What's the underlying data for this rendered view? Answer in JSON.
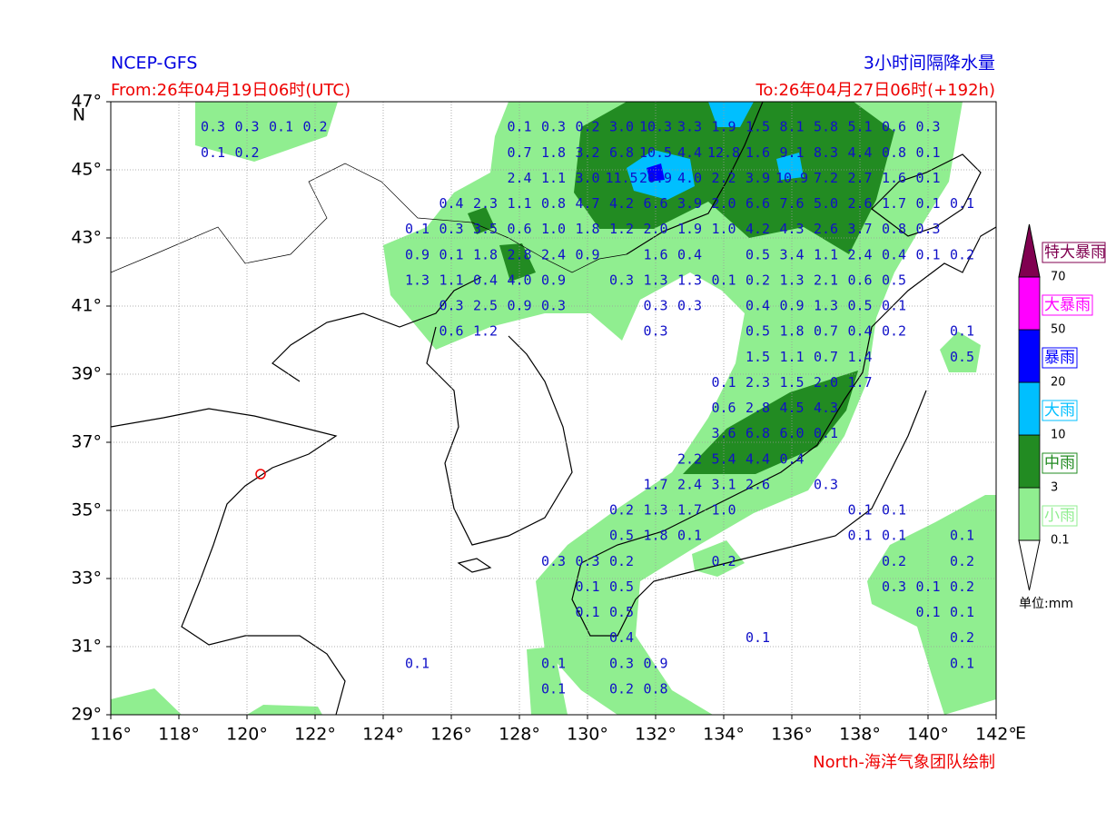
{
  "header": {
    "model": "NCEP-GFS",
    "product": "3小时间隔降水量",
    "from": "From:26年04月19日06时(UTC)",
    "to": "To:26年04月27日06时(+192h)",
    "credit": "North-海洋气象团队绘制",
    "lat_unit": "N",
    "lon_unit": "E"
  },
  "map": {
    "lonlim": [
      116,
      142
    ],
    "latlim": [
      29,
      47
    ],
    "xticks": [
      {
        "value": 116,
        "label": "116°"
      },
      {
        "value": 118,
        "label": "118°"
      },
      {
        "value": 120,
        "label": "120°"
      },
      {
        "value": 122,
        "label": "122°"
      },
      {
        "value": 124,
        "label": "124°"
      },
      {
        "value": 126,
        "label": "126°"
      },
      {
        "value": 128,
        "label": "128°"
      },
      {
        "value": 130,
        "label": "130°"
      },
      {
        "value": 132,
        "label": "132°"
      },
      {
        "value": 134,
        "label": "134°"
      },
      {
        "value": 136,
        "label": "136°"
      },
      {
        "value": 138,
        "label": "138°"
      },
      {
        "value": 140,
        "label": "140°"
      },
      {
        "value": 142,
        "label": "142°"
      }
    ],
    "yticks": [
      {
        "value": 29,
        "label": "29°"
      },
      {
        "value": 31,
        "label": "31°"
      },
      {
        "value": 33,
        "label": "33°"
      },
      {
        "value": 35,
        "label": "35°"
      },
      {
        "value": 37,
        "label": "37°"
      },
      {
        "value": 39,
        "label": "39°"
      },
      {
        "value": 41,
        "label": "41°"
      },
      {
        "value": 43,
        "label": "43°"
      },
      {
        "value": 45,
        "label": "45°"
      },
      {
        "value": 47,
        "label": "47°"
      }
    ],
    "grid": true,
    "rows": [
      {
        "lat": 46.25,
        "lon": 119,
        "values": [
          "0.3",
          "0.3",
          "0.1",
          "0.2",
          null,
          null,
          null,
          null,
          null,
          "0.1",
          "0.3",
          "0.2",
          "3.0",
          "10.3",
          "3.3",
          "1.9",
          "1.5",
          "8.1",
          "5.8",
          "5.1",
          "0.6",
          "0.3"
        ]
      },
      {
        "lat": 45.5,
        "lon": 119,
        "values": [
          "0.1",
          "0.2",
          null,
          null,
          null,
          null,
          null,
          null,
          null,
          "0.7",
          "1.8",
          "3.2",
          "6.8",
          "10.5",
          "4.4",
          "12.8",
          "1.6",
          "9.1",
          "8.3",
          "4.4",
          "0.8",
          "0.1"
        ]
      },
      {
        "lat": 44.75,
        "lon": 128,
        "values": [
          "2.4",
          "1.1",
          "3.0",
          "11.5",
          "20.9",
          "4.0",
          "2.2",
          "3.9",
          "10.9",
          "7.2",
          "2.7",
          "1.6",
          "0.1"
        ]
      },
      {
        "lat": 44.0,
        "lon": 126,
        "values": [
          "0.4",
          "2.3",
          "1.1",
          "0.8",
          "4.7",
          "4.2",
          "6.6",
          "3.9",
          "2.0",
          "6.6",
          "7.6",
          "5.0",
          "2.6",
          "1.7",
          "0.1",
          "0.1"
        ]
      },
      {
        "lat": 43.25,
        "lon": 125,
        "values": [
          "0.1",
          "0.3",
          "3.5",
          "0.6",
          "1.0",
          "1.8",
          "1.2",
          "2.0",
          "1.9",
          "1.0",
          "4.2",
          "4.3",
          "2.6",
          "3.7",
          "0.8",
          "0.3"
        ]
      },
      {
        "lat": 42.5,
        "lon": 125,
        "values": [
          "0.9",
          "0.1",
          "1.8",
          "2.8",
          "2.4",
          "0.9",
          null,
          "1.6",
          "0.4",
          null,
          "0.5",
          "3.4",
          "1.1",
          "2.4",
          "0.4",
          "0.1",
          "0.2"
        ]
      },
      {
        "lat": 41.75,
        "lon": 125,
        "values": [
          "1.3",
          "1.1",
          "0.4",
          "4.0",
          "0.9",
          null,
          "0.3",
          "1.3",
          "1.3",
          "0.1",
          "0.2",
          "1.3",
          "2.1",
          "0.6",
          "0.5"
        ]
      },
      {
        "lat": 41.0,
        "lon": 126,
        "values": [
          "0.3",
          "2.5",
          "0.9",
          "0.3",
          null,
          null,
          "0.3",
          "0.3",
          null,
          "0.4",
          "0.9",
          "1.3",
          "0.5",
          "0.1"
        ]
      },
      {
        "lat": 40.25,
        "lon": 126,
        "values": [
          "0.6",
          "1.2",
          null,
          null,
          null,
          null,
          "0.3",
          null,
          null,
          "0.5",
          "1.8",
          "0.7",
          "0.4",
          "0.2",
          null,
          "0.1"
        ]
      },
      {
        "lat": 39.5,
        "lon": 135,
        "values": [
          "1.5",
          "1.1",
          "0.7",
          "1.4",
          null,
          null,
          "0.5"
        ]
      },
      {
        "lat": 38.75,
        "lon": 134,
        "values": [
          "0.1",
          "2.3",
          "1.5",
          "2.0",
          "1.7"
        ]
      },
      {
        "lat": 38.0,
        "lon": 134,
        "values": [
          "0.6",
          "2.8",
          "4.5",
          "4.3"
        ]
      },
      {
        "lat": 37.25,
        "lon": 134,
        "values": [
          "3.6",
          "6.8",
          "6.0",
          "0.1"
        ]
      },
      {
        "lat": 36.5,
        "lon": 133,
        "values": [
          "2.2",
          "5.4",
          "4.4",
          "0.4"
        ]
      },
      {
        "lat": 35.75,
        "lon": 132,
        "values": [
          "1.7",
          "2.4",
          "3.1",
          "2.6",
          null,
          "0.3"
        ]
      },
      {
        "lat": 35.0,
        "lon": 131,
        "values": [
          "0.2",
          "1.3",
          "1.7",
          "1.0",
          null,
          null,
          null,
          "0.1",
          "0.1"
        ]
      },
      {
        "lat": 34.25,
        "lon": 131,
        "values": [
          "0.5",
          "1.8",
          "0.1",
          null,
          null,
          null,
          null,
          "0.1",
          "0.1",
          null,
          "0.1"
        ]
      },
      {
        "lat": 33.5,
        "lon": 129,
        "values": [
          "0.3",
          "0.3",
          "0.2",
          null,
          null,
          "0.2",
          null,
          null,
          null,
          null,
          "0.2",
          null,
          "0.2"
        ]
      },
      {
        "lat": 32.75,
        "lon": 130,
        "values": [
          "0.1",
          "0.5",
          null,
          null,
          null,
          null,
          null,
          null,
          null,
          "0.3",
          "0.1",
          "0.2"
        ]
      },
      {
        "lat": 32.0,
        "lon": 130,
        "values": [
          "0.1",
          "0.5",
          null,
          null,
          null,
          null,
          null,
          null,
          null,
          null,
          "0.1",
          "0.1"
        ]
      },
      {
        "lat": 31.25,
        "lon": 131,
        "values": [
          "0.4",
          null,
          null,
          null,
          "0.1",
          null,
          null,
          null,
          null,
          null,
          "0.2"
        ]
      },
      {
        "lat": 30.5,
        "lon": 125,
        "values": [
          "0.1",
          null,
          null,
          null,
          "0.1",
          null,
          "0.3",
          "0.9",
          null,
          null,
          null,
          null,
          null,
          null,
          null,
          null,
          "0.1"
        ]
      },
      {
        "lat": 29.75,
        "lon": 129,
        "values": [
          "0.1",
          null,
          "0.2",
          "0.8"
        ]
      }
    ]
  },
  "legend": {
    "levels": [
      {
        "name": "小雨",
        "color": "#90ee90"
      },
      {
        "name": "中雨",
        "color": "#228b22"
      },
      {
        "name": "大雨",
        "color": "#00bfff"
      },
      {
        "name": "暴雨",
        "color": "#0000ff"
      },
      {
        "name": "大暴雨",
        "color": "#ff00ff"
      },
      {
        "name": "特大暴雨",
        "color": "#800050"
      }
    ],
    "bounds": [
      0.1,
      3,
      10,
      20,
      50,
      70
    ],
    "unit": "单位:mm"
  }
}
